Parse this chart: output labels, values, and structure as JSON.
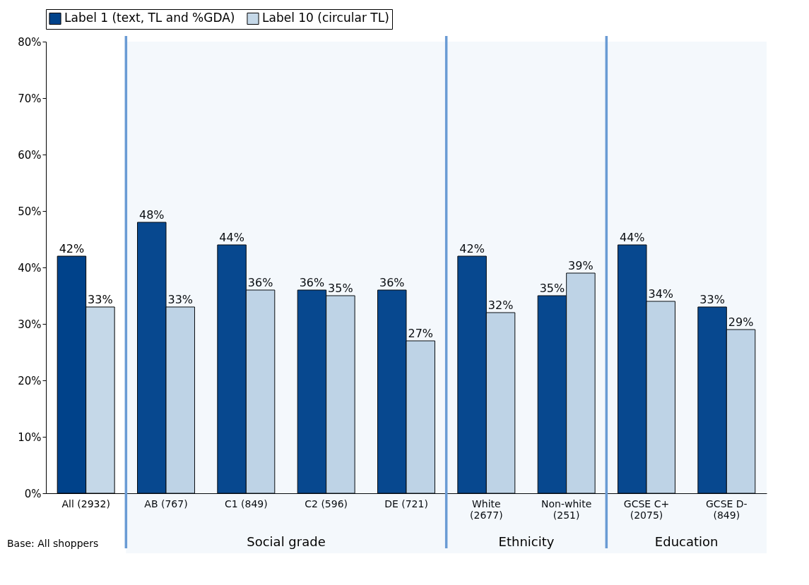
{
  "chart_data": {
    "type": "bar",
    "categories": [
      "All (2932)",
      "AB (767)",
      "C1 (849)",
      "C2 (596)",
      "DE (721)",
      "White (2677)",
      "Non-white (251)",
      "GCSE C+ (2075)",
      "GCSE D- (849)"
    ],
    "series": [
      {
        "name": "Label 1 (text, TL and %GDA)",
        "color": "#00428a",
        "values": [
          42,
          48,
          44,
          36,
          36,
          42,
          35,
          44,
          33
        ],
        "value_labels": [
          "42%",
          "48%",
          "44%",
          "36%",
          "36%",
          "42%",
          "35%",
          "44%",
          "33%"
        ]
      },
      {
        "name": "Label 10 (circular TL)",
        "color": "#c5d8e8",
        "values": [
          33,
          33,
          36,
          35,
          27,
          32,
          39,
          34,
          29
        ],
        "value_labels": [
          "33%",
          "33%",
          "36%",
          "35%",
          "27%",
          "32%",
          "39%",
          "34%",
          "29%"
        ]
      }
    ],
    "ylim": [
      0,
      80
    ],
    "yticks": [
      {
        "value": 0,
        "label": "0%"
      },
      {
        "value": 10,
        "label": "10%"
      },
      {
        "value": 20,
        "label": "20%"
      },
      {
        "value": 30,
        "label": "30%"
      },
      {
        "value": 40,
        "label": "40%"
      },
      {
        "value": 50,
        "label": "50%"
      },
      {
        "value": 60,
        "label": "60%"
      },
      {
        "value": 70,
        "label": "70%"
      },
      {
        "value": 80,
        "label": "80%"
      }
    ],
    "bands": [
      {
        "axis": "x",
        "from": "AB (767)",
        "to": "DE (721)",
        "label": "Social grade",
        "color": "#6a9bd4"
      },
      {
        "axis": "x",
        "from": "White (2677)",
        "to": "Non-white (251)",
        "label": "Ethnicity",
        "color": "#6a9bd4"
      },
      {
        "axis": "x",
        "from": "GCSE C+ (2075)",
        "to": "GCSE D- (849)",
        "label": "Education",
        "color": "#6a9bd4"
      }
    ],
    "annotations": [
      "Base: All shoppers"
    ],
    "legend": "top",
    "grid": false
  }
}
